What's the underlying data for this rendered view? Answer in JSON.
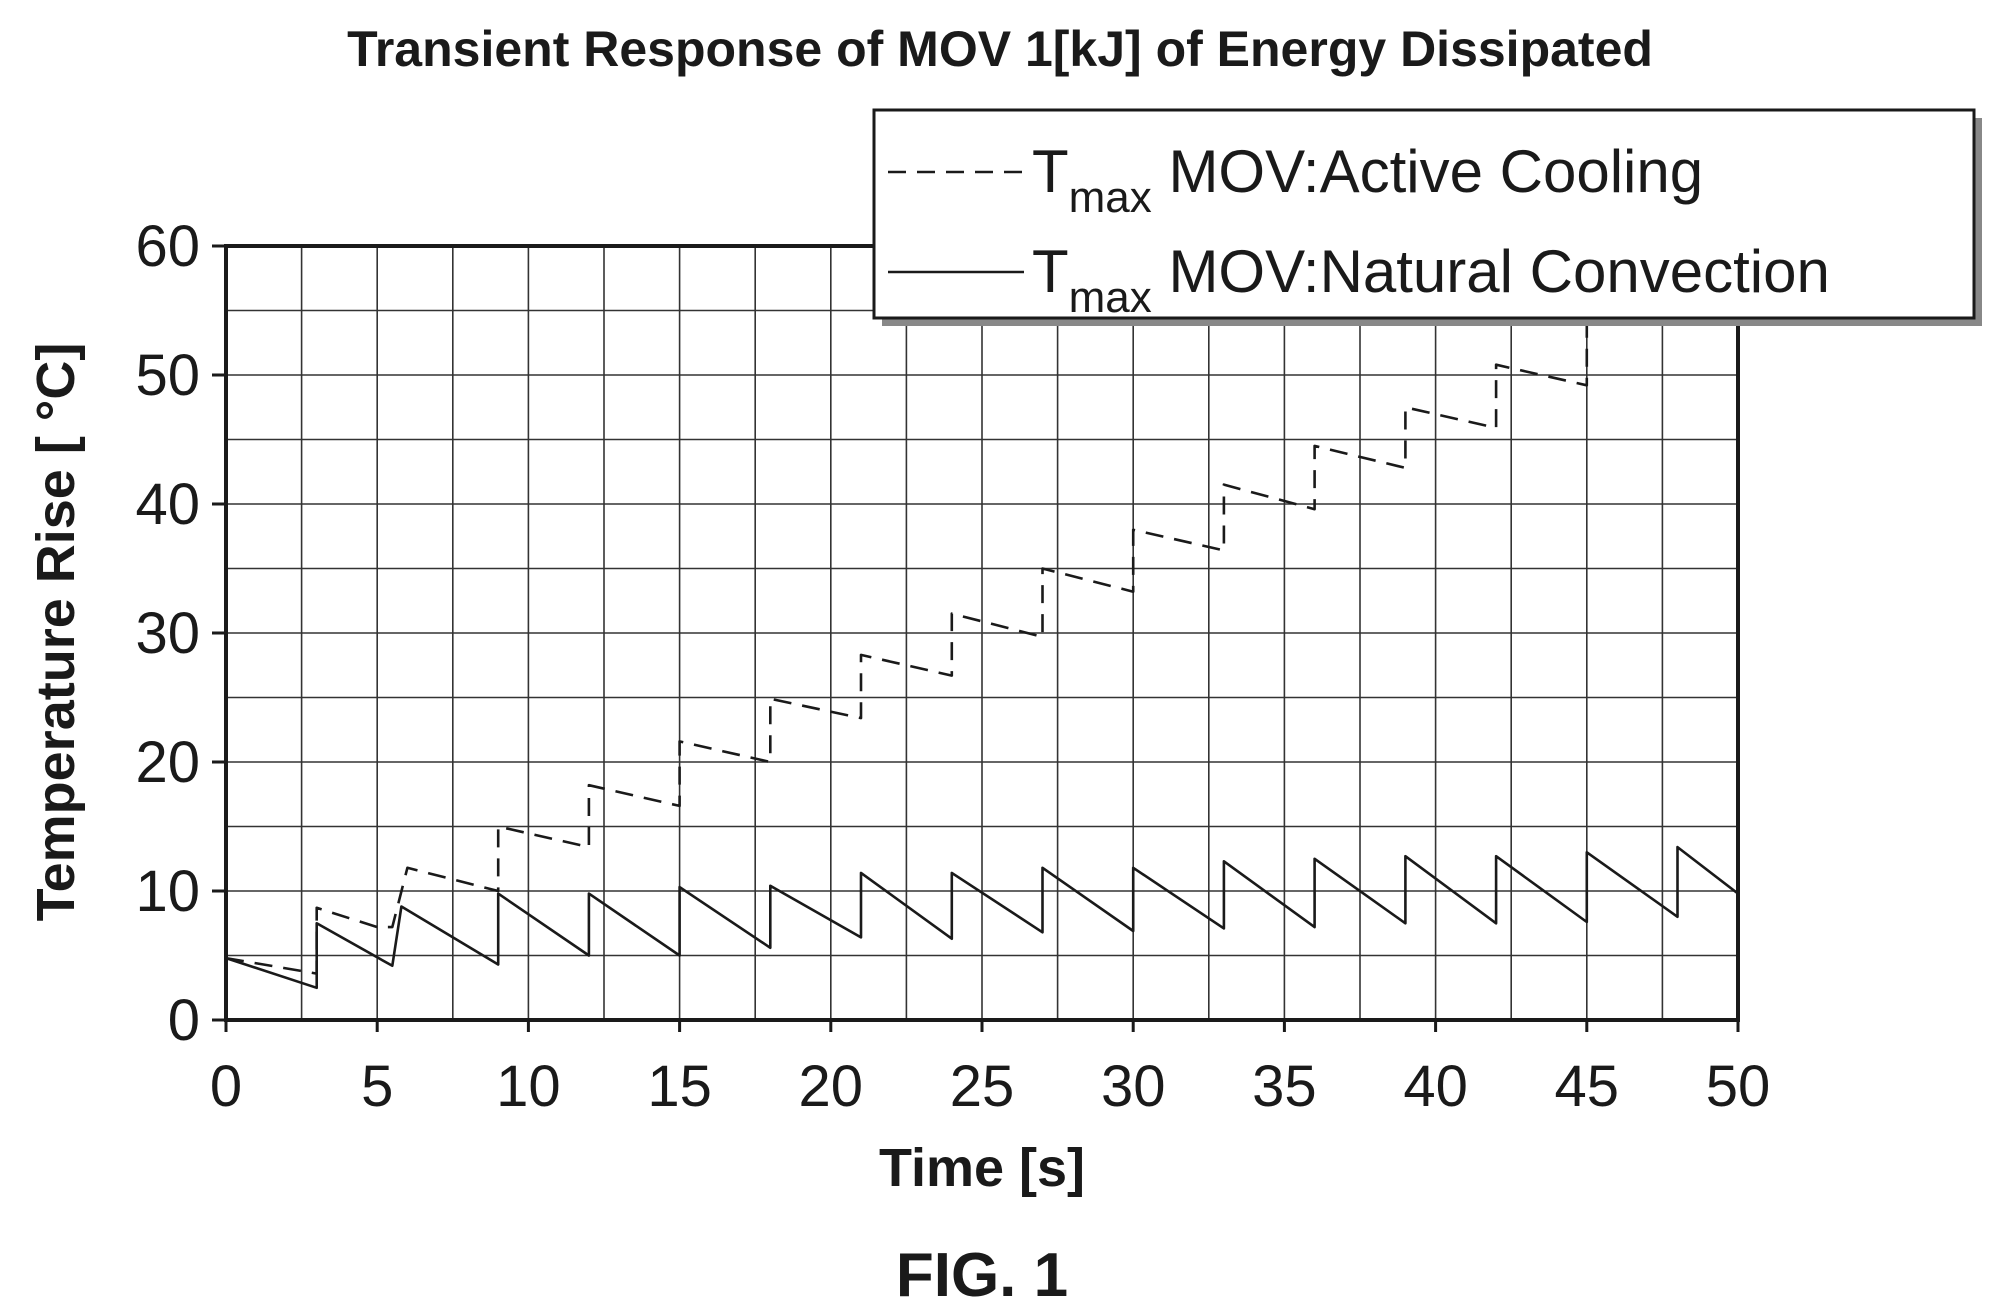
{
  "chart_data": {
    "type": "line",
    "title": "Transient Response of MOV 1[kJ] of Energy Dissipated",
    "xlabel": "Time [s]",
    "ylabel": "Temperature Rise [ °C]",
    "figure_label": "FIG. 1",
    "xlim": [
      0,
      50
    ],
    "ylim": [
      0,
      60
    ],
    "x_ticks": [
      0,
      5,
      10,
      15,
      20,
      25,
      30,
      35,
      40,
      45,
      50
    ],
    "y_ticks": [
      0,
      10,
      20,
      30,
      40,
      50,
      60
    ],
    "grid": true,
    "legend_position": "top-right",
    "series": [
      {
        "name_main": "T",
        "name_sub": "max",
        "name_rest": " MOV:Active Cooling",
        "style": "dashed",
        "color": "#1a1a1a",
        "x": [
          0,
          3,
          3,
          5,
          5.5,
          6,
          9,
          9,
          12,
          12,
          15,
          15,
          18,
          18,
          21,
          21,
          24,
          24,
          27,
          27,
          30,
          30,
          33,
          33,
          36,
          36,
          39,
          39,
          42,
          42,
          45,
          45
        ],
        "y": [
          4.8,
          3.6,
          8.7,
          7.2,
          7.2,
          11.8,
          10.0,
          15.0,
          13.4,
          18.2,
          16.6,
          21.6,
          20.0,
          24.9,
          23.4,
          28.3,
          26.7,
          31.5,
          29.7,
          35.0,
          33.2,
          38.0,
          36.4,
          41.5,
          39.6,
          44.5,
          42.8,
          47.5,
          45.9,
          50.8,
          49.2,
          54.0
        ]
      },
      {
        "name_main": "T",
        "name_sub": "max",
        "name_rest": " MOV:Natural Convection",
        "style": "solid",
        "color": "#1a1a1a",
        "x": [
          0,
          3,
          3,
          5.5,
          5.8,
          9,
          9,
          12,
          12,
          15,
          15,
          18,
          18,
          21,
          21,
          24,
          24,
          27,
          27,
          30,
          30,
          33,
          33,
          36,
          36,
          39,
          39,
          42,
          42,
          45,
          45,
          48,
          48,
          50
        ],
        "y": [
          4.8,
          2.5,
          7.5,
          4.2,
          8.8,
          4.3,
          9.8,
          5.0,
          9.8,
          5.0,
          10.3,
          5.6,
          10.4,
          6.4,
          11.4,
          6.3,
          11.4,
          6.8,
          11.8,
          6.9,
          11.8,
          7.1,
          12.3,
          7.2,
          12.5,
          7.5,
          12.7,
          7.5,
          12.7,
          7.6,
          13.0,
          8.0,
          13.4,
          9.8
        ]
      }
    ]
  }
}
